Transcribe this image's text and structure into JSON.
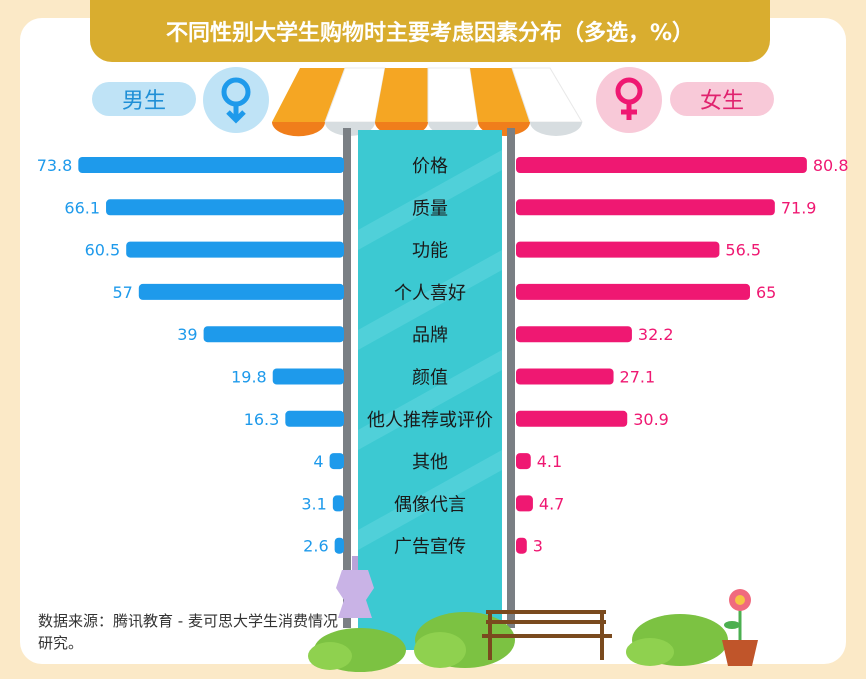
{
  "title": "不同性别大学生购物时主要考虑因素分布（多选，%）",
  "male_label": "男生",
  "female_label": "女生",
  "source": "数据来源：腾讯教育 - 麦可思大学生消费情况研究。",
  "colors": {
    "male": "#1e9aeb",
    "female": "#ef1872",
    "banner": "#d9ad2f",
    "center_band": "#3cc9d2",
    "background": "#fbe9c7"
  },
  "icons": [
    "male-symbol-icon",
    "female-symbol-icon",
    "awning-icon",
    "mannequin-icon",
    "bench-icon",
    "flower-pot-icon",
    "bush-icon"
  ],
  "chart_data": {
    "type": "bar",
    "orientation": "horizontal-butterfly",
    "categories": [
      "价格",
      "质量",
      "功能",
      "个人喜好",
      "品牌",
      "颜值",
      "他人推荐或评价",
      "其他",
      "偶像代言",
      "广告宣传"
    ],
    "series": [
      {
        "name": "男生",
        "values": [
          73.8,
          66.1,
          60.5,
          57,
          39,
          19.8,
          16.3,
          4,
          3.1,
          2.6
        ],
        "labels": [
          "73.8",
          "66.1",
          "60.5",
          "57",
          "39",
          "19.8",
          "16.3",
          "4",
          "3.1",
          "2.6"
        ]
      },
      {
        "name": "女生",
        "values": [
          80.8,
          71.9,
          56.5,
          65,
          32.2,
          27.1,
          30.9,
          4.1,
          4.7,
          3
        ],
        "labels": [
          "80.8",
          "71.9",
          "56.5",
          "65",
          "32.2",
          "27.1",
          "30.9",
          "4.1",
          "4.7",
          "3"
        ]
      }
    ],
    "xlim": [
      0,
      100
    ],
    "grid": false,
    "legend": "top"
  }
}
